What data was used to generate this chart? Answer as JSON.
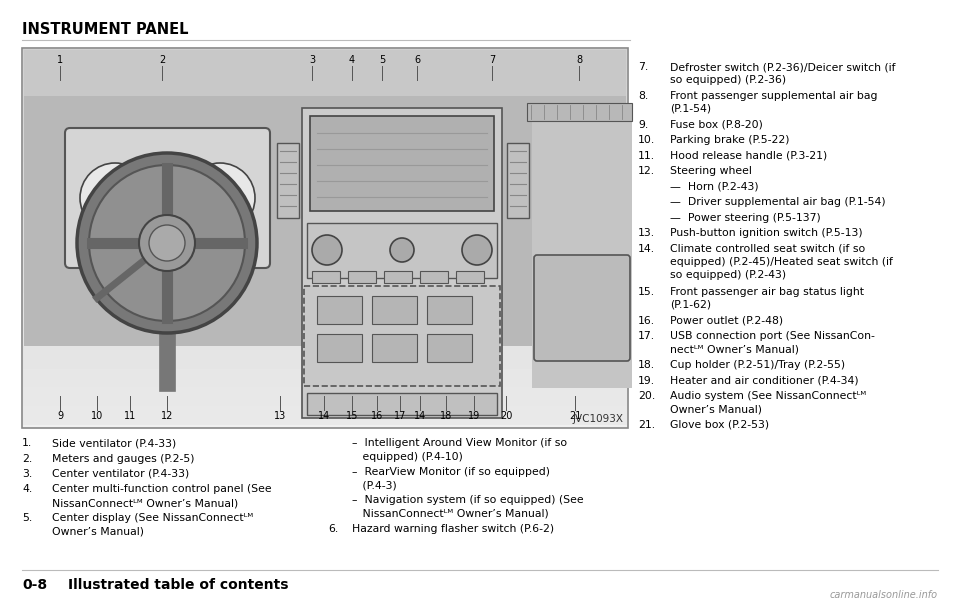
{
  "bg_color": "#ffffff",
  "title": "INSTRUMENT PANEL",
  "jvc_label": "JVC1093X",
  "left_items": [
    {
      "num": "1.",
      "text": "Side ventilator (P.4-33)"
    },
    {
      "num": "2.",
      "text": "Meters and gauges (P.2-5)"
    },
    {
      "num": "3.",
      "text": "Center ventilator (P.4-33)"
    },
    {
      "num": "4.",
      "text": "Center multi-function control panel (See\nNissanConnectᴸᴹ Owner’s Manual)"
    },
    {
      "num": "5.",
      "text": "Center display (See NissanConnectᴸᴹ\nOwner’s Manual)"
    }
  ],
  "middle_items": [
    {
      "num": "",
      "text": "–  Intelligent Around View Monitor (if so\n   equipped) (P.4-10)"
    },
    {
      "num": "",
      "text": "–  RearView Monitor (if so equipped)\n   (P.4-3)"
    },
    {
      "num": "",
      "text": "–  Navigation system (if so equipped) (See\n   NissanConnectᴸᴹ Owner’s Manual)"
    },
    {
      "num": "6.",
      "text": "Hazard warning flasher switch (P.6-2)"
    }
  ],
  "right_items": [
    {
      "num": "7.",
      "text": "Defroster switch (P.2-36)/Deicer switch (if\nso equipped) (P.2-36)"
    },
    {
      "num": "8.",
      "text": "Front passenger supplemental air bag\n(P.1-54)"
    },
    {
      "num": "9.",
      "text": "Fuse box (P.8-20)"
    },
    {
      "num": "10.",
      "text": "Parking brake (P.5-22)"
    },
    {
      "num": "11.",
      "text": "Hood release handle (P.3-21)"
    },
    {
      "num": "12.",
      "text": "Steering wheel"
    },
    {
      "num": "",
      "text": "—  Horn (P.2-43)"
    },
    {
      "num": "",
      "text": "—  Driver supplemental air bag (P.1-54)"
    },
    {
      "num": "",
      "text": "—  Power steering (P.5-137)"
    },
    {
      "num": "13.",
      "text": "Push-button ignition switch (P.5-13)"
    },
    {
      "num": "14.",
      "text": "Climate controlled seat switch (if so\nequipped) (P.2-45)/Heated seat switch (if\nso equipped) (P.2-43)"
    },
    {
      "num": "15.",
      "text": "Front passenger air bag status light\n(P.1-62)"
    },
    {
      "num": "16.",
      "text": "Power outlet (P.2-48)"
    },
    {
      "num": "17.",
      "text": "USB connection port (See NissanCon-\nnectᴸᴹ Owner’s Manual)"
    },
    {
      "num": "18.",
      "text": "Cup holder (P.2-51)/Tray (P.2-55)"
    },
    {
      "num": "19.",
      "text": "Heater and air conditioner (P.4-34)"
    },
    {
      "num": "20.",
      "text": "Audio system (See NissanConnectᴸᴹ\nOwner’s Manual)"
    },
    {
      "num": "21.",
      "text": "Glove box (P.2-53)"
    }
  ],
  "watermark": "carmanualsonline.info"
}
